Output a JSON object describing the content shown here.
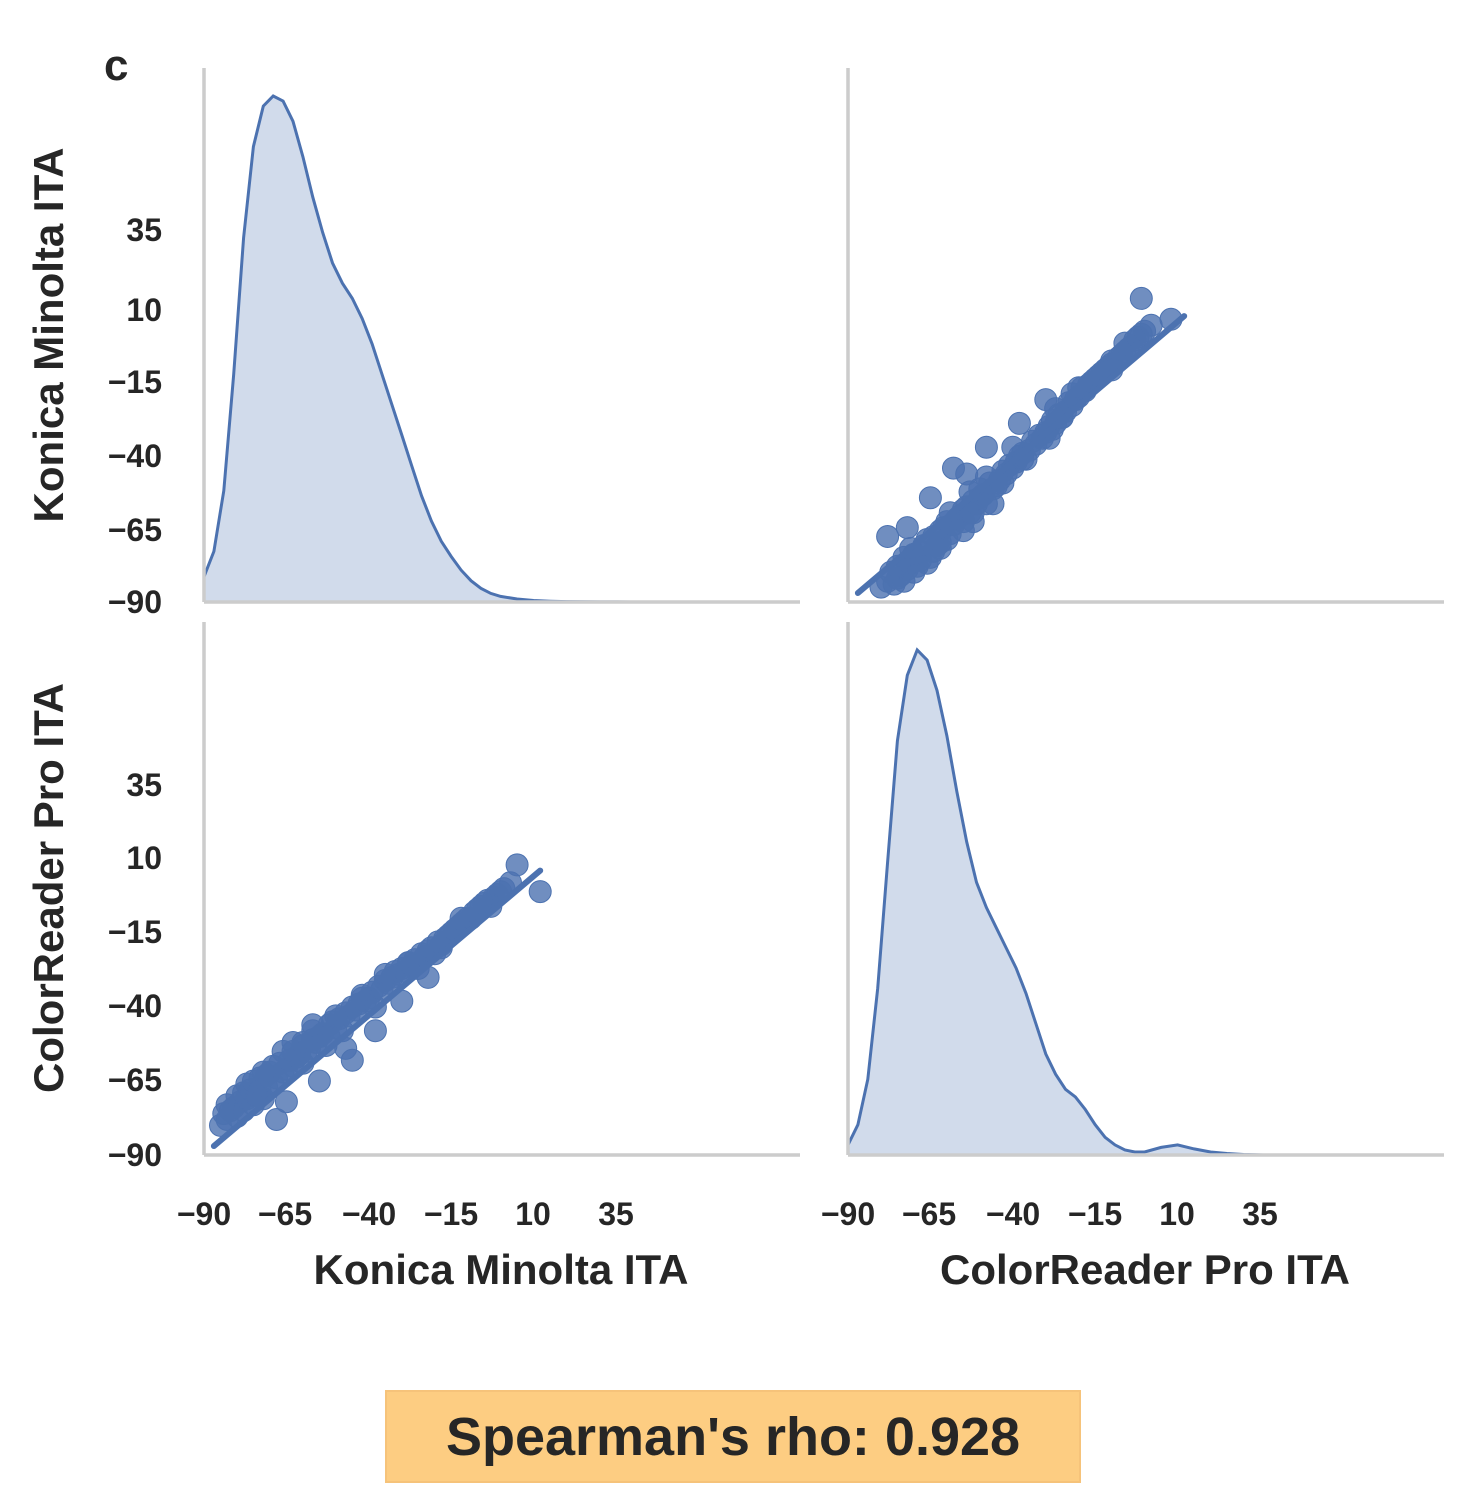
{
  "panel_label": "c",
  "stat_text": "Spearman's rho: 0.928",
  "colors": {
    "series": "#4c72b0",
    "fill": "#d1dbeb",
    "spine": "#cccccc",
    "stat_bg": "#fdcd82"
  },
  "chart_data": {
    "type": "pairplot",
    "variables": [
      "Konica Minolta ITA",
      "ColorReader Pro ITA"
    ],
    "ylabels": [
      "Konica Minolta ITA",
      "ColorReader Pro ITA"
    ],
    "xlabels": [
      "Konica Minolta ITA",
      "ColorReader Pro ITA"
    ],
    "ticks": [
      -90,
      -65,
      -40,
      -15,
      10,
      35
    ],
    "tick_labels": [
      "−90",
      "−65",
      "−40",
      "−15",
      "10",
      "35"
    ],
    "range": [
      -90,
      90
    ],
    "diag_type": "kde",
    "kde": {
      "konica": {
        "x": [
          -90,
          -87,
          -84,
          -81,
          -78,
          -75,
          -72,
          -69,
          -66,
          -63,
          -60,
          -57,
          -54,
          -51,
          -48,
          -45,
          -42,
          -39,
          -36,
          -33,
          -30,
          -27,
          -24,
          -21,
          -18,
          -15,
          -12,
          -9,
          -6,
          -3,
          0,
          5,
          10,
          15,
          20,
          25,
          30,
          35,
          40
        ],
        "density": [
          0.05,
          0.1,
          0.22,
          0.45,
          0.72,
          0.9,
          0.98,
          1.0,
          0.99,
          0.95,
          0.88,
          0.8,
          0.73,
          0.67,
          0.63,
          0.6,
          0.56,
          0.51,
          0.45,
          0.39,
          0.33,
          0.27,
          0.21,
          0.16,
          0.12,
          0.09,
          0.063,
          0.042,
          0.027,
          0.017,
          0.011,
          0.006,
          0.003,
          0.0015,
          0.0008,
          0.0004,
          0.0002,
          0.0001,
          0.0
        ]
      },
      "colorreader": {
        "x": [
          -90,
          -87,
          -84,
          -81,
          -78,
          -75,
          -72,
          -69,
          -66,
          -63,
          -60,
          -57,
          -54,
          -51,
          -48,
          -45,
          -42,
          -39,
          -36,
          -33,
          -30,
          -27,
          -24,
          -21,
          -18,
          -15,
          -12,
          -9,
          -6,
          -3,
          0,
          5,
          10,
          15,
          20,
          25,
          30,
          33,
          36
        ],
        "density": [
          0.02,
          0.06,
          0.15,
          0.33,
          0.58,
          0.82,
          0.95,
          1.0,
          0.98,
          0.92,
          0.83,
          0.72,
          0.62,
          0.54,
          0.49,
          0.45,
          0.41,
          0.37,
          0.32,
          0.26,
          0.2,
          0.16,
          0.13,
          0.115,
          0.09,
          0.06,
          0.035,
          0.02,
          0.01,
          0.006,
          0.006,
          0.015,
          0.02,
          0.012,
          0.006,
          0.003,
          0.001,
          0.0005,
          0.0
        ]
      }
    },
    "scatter": {
      "konica": [
        -85,
        -84,
        -83,
        -83,
        -82,
        -81,
        -80,
        -80,
        -79,
        -78,
        -78,
        -77,
        -77,
        -76,
        -75,
        -75,
        -74,
        -73,
        -73,
        -72,
        -71,
        -71,
        -70,
        -69,
        -69,
        -68,
        -67,
        -66,
        -66,
        -65,
        -64,
        -63,
        -63,
        -62,
        -61,
        -60,
        -60,
        -59,
        -58,
        -57,
        -57,
        -56,
        -55,
        -54,
        -53,
        -52,
        -51,
        -50,
        -49,
        -48,
        -47,
        -46,
        -45,
        -44,
        -43,
        -42,
        -41,
        -40,
        -39,
        -38,
        -37,
        -36,
        -35,
        -34,
        -33,
        -32,
        -31,
        -30,
        -29,
        -28,
        -27,
        -26,
        -25,
        -24,
        -23,
        -22,
        -21,
        -20,
        -19,
        -18,
        -17,
        -16,
        -15,
        -14,
        -13,
        -12,
        -11,
        -10,
        -9,
        -8,
        -7,
        -6,
        -5,
        -4,
        -3,
        -2,
        -1,
        0,
        1,
        3,
        -68,
        -72,
        -55,
        -45,
        -38,
        -30,
        -22,
        -60,
        -50,
        -65,
        -42,
        -35,
        -28,
        -18,
        -12,
        -47,
        -57,
        -74,
        -63,
        -52,
        5,
        12
      ],
      "colorreader": [
        -80,
        -76,
        -78,
        -73,
        -75,
        -74,
        -70,
        -77,
        -72,
        -69,
        -75,
        -66,
        -71,
        -68,
        -73,
        -65,
        -70,
        -64,
        -68,
        -71,
        -63,
        -67,
        -62,
        -66,
        -60,
        -64,
        -59,
        -62,
        -55,
        -61,
        -58,
        -60,
        -52,
        -57,
        -56,
        -59,
        -53,
        -55,
        -54,
        -51,
        -48,
        -52,
        -50,
        -49,
        -53,
        -46,
        -45,
        -47,
        -44,
        -48,
        -42,
        -43,
        -40,
        -41,
        -39,
        -36,
        -38,
        -37,
        -35,
        -40,
        -33,
        -34,
        -31,
        -32,
        -30,
        -28,
        -29,
        -27,
        -28,
        -25,
        -26,
        -24,
        -27,
        -22,
        -23,
        -21,
        -20,
        -22,
        -18,
        -19,
        -17,
        -16,
        -15,
        -14,
        -13,
        -12,
        -11,
        -10,
        -10,
        -8,
        -7,
        -6,
        -5,
        -4,
        -6,
        -3,
        -2,
        -1,
        0,
        2,
        -78,
        -62,
        -65,
        -58,
        -48,
        -38,
        -30,
        -52,
        -43,
        -72,
        -37,
        -29,
        -25,
        -20,
        -10,
        -54,
        -46,
        -70,
        -55,
        -50,
        8,
        -1
      ],
      "regression": {
        "x_range": [
          -87,
          12
        ],
        "slope": 0.94,
        "intercept": -5.2
      }
    }
  }
}
